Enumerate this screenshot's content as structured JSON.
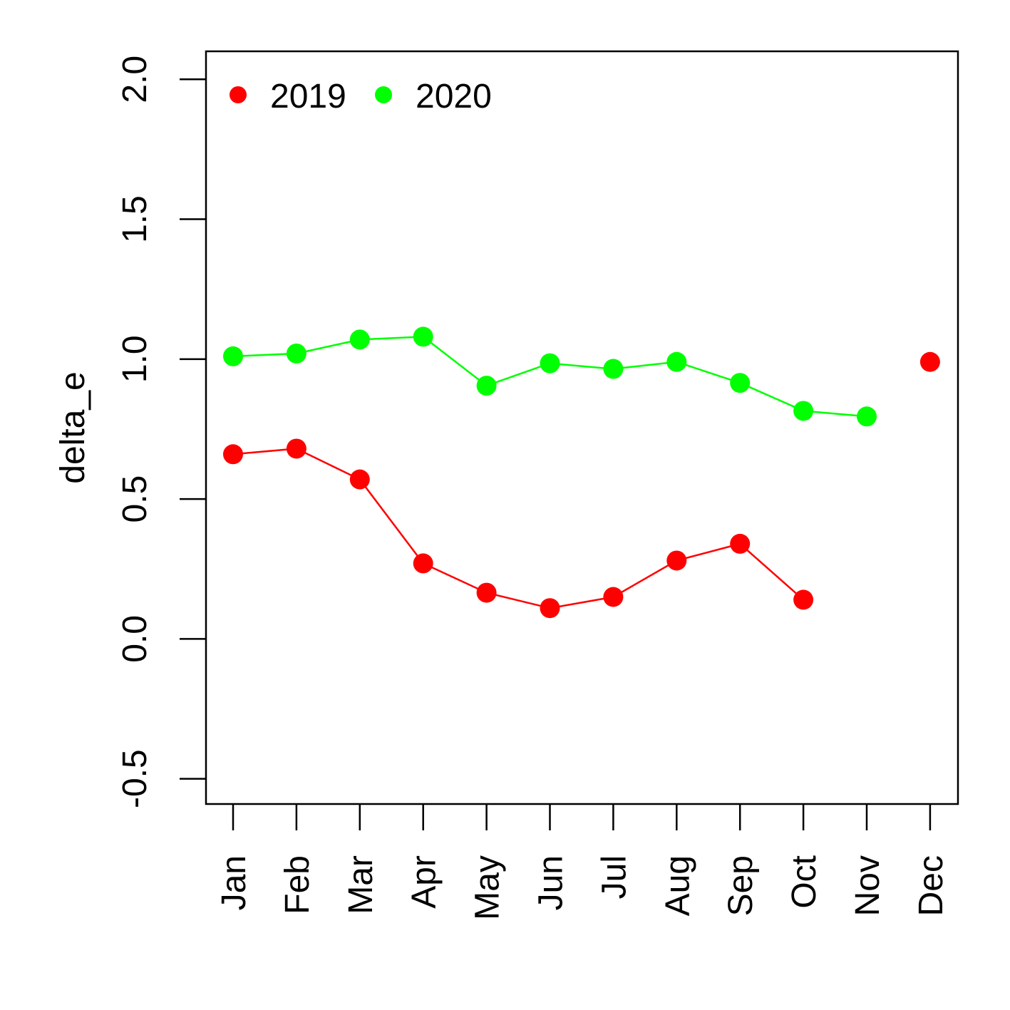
{
  "chart_data": {
    "type": "line",
    "title": "",
    "xlabel": "",
    "ylabel": "delta_e",
    "categories": [
      "Jan",
      "Feb",
      "Mar",
      "Apr",
      "May",
      "Jun",
      "Jul",
      "Aug",
      "Sep",
      "Oct",
      "Nov",
      "Dec"
    ],
    "ylim": [
      -0.59,
      2.1
    ],
    "yticks": [
      "-0.5",
      "0.0",
      "0.5",
      "1.0",
      "1.5",
      "2.0"
    ],
    "grid": false,
    "legend_position": "top-left",
    "series": [
      {
        "name": "2019",
        "color": "#ff0000",
        "values": [
          0.66,
          0.68,
          0.57,
          0.27,
          0.165,
          0.11,
          0.15,
          0.28,
          0.34,
          0.14,
          null,
          0.99
        ]
      },
      {
        "name": "2020",
        "color": "#00ff00",
        "values": [
          1.01,
          1.02,
          1.07,
          1.08,
          0.905,
          0.985,
          0.965,
          0.99,
          0.915,
          0.815,
          0.795,
          null
        ]
      }
    ]
  }
}
